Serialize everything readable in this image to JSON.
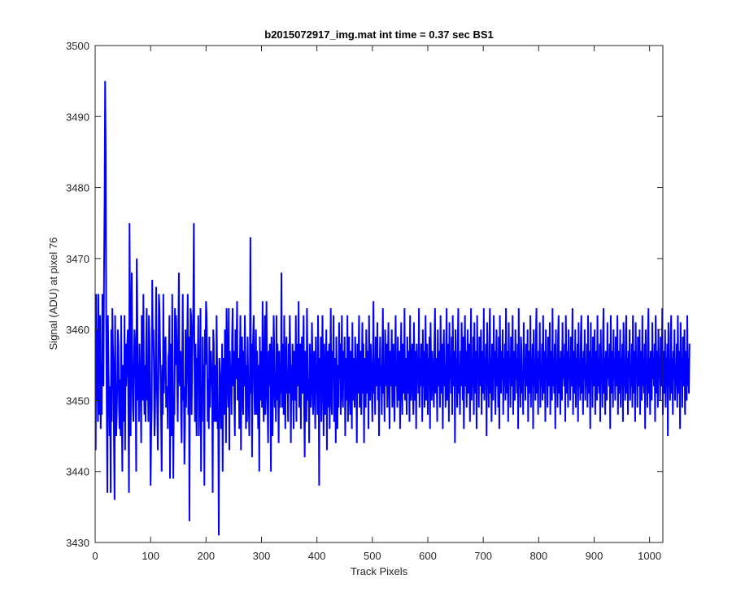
{
  "chart_data": {
    "type": "line",
    "title": "b2015072917_img.mat int time = 0.37 sec   BS1",
    "xlabel": "Track Pixels",
    "ylabel": "Signal (ADU) at pixel 76",
    "xlim": [
      0,
      1024
    ],
    "ylim": [
      3430,
      3500
    ],
    "xticks": [
      0,
      100,
      200,
      300,
      400,
      500,
      600,
      700,
      800,
      900,
      1000
    ],
    "yticks": [
      3430,
      3440,
      3450,
      3460,
      3470,
      3480,
      3490,
      3500
    ],
    "grid": false,
    "line_color": "#0000ff",
    "series": [
      {
        "x_start": 1,
        "x_step": 1,
        "values": [
          3443,
          3465,
          3450,
          3460,
          3447,
          3465,
          3448,
          3455,
          3462,
          3446,
          3455,
          3448,
          3465,
          3458,
          3452,
          3468,
          3478,
          3495,
          3485,
          3460,
          3448,
          3437,
          3462,
          3455,
          3450,
          3445,
          3452,
          3437,
          3460,
          3447,
          3463,
          3458,
          3455,
          3444,
          3436,
          3462,
          3450,
          3445,
          3448,
          3453,
          3460,
          3458,
          3449,
          3446,
          3453,
          3445,
          3462,
          3448,
          3440,
          3455,
          3452,
          3447,
          3462,
          3443,
          3458,
          3452,
          3455,
          3458,
          3460,
          3448,
          3437,
          3475,
          3462,
          3445,
          3458,
          3468,
          3455,
          3449,
          3447,
          3455,
          3460,
          3458,
          3452,
          3440,
          3470,
          3463,
          3450,
          3455,
          3447,
          3458,
          3454,
          3452,
          3444,
          3462,
          3458,
          3450,
          3465,
          3453,
          3448,
          3455,
          3447,
          3458,
          3463,
          3450,
          3455,
          3447,
          3462,
          3459,
          3452,
          3438,
          3445,
          3449,
          3467,
          3458,
          3460,
          3455,
          3445,
          3448,
          3455,
          3466,
          3454,
          3449,
          3443,
          3452,
          3465,
          3463,
          3458,
          3453,
          3447,
          3440,
          3455,
          3448,
          3465,
          3451,
          3455,
          3458,
          3459,
          3449,
          3450,
          3452,
          3446,
          3456,
          3457,
          3462,
          3439,
          3455,
          3458,
          3445,
          3465,
          3452,
          3439,
          3451,
          3448,
          3463,
          3455,
          3462,
          3458,
          3452,
          3447,
          3459,
          3468,
          3453,
          3452,
          3457,
          3448,
          3444,
          3455,
          3465,
          3450,
          3452,
          3441,
          3446,
          3460,
          3449,
          3455,
          3458,
          3465,
          3448,
          3459,
          3433,
          3452,
          3463,
          3462,
          3448,
          3456,
          3460,
          3463,
          3475,
          3456,
          3447,
          3458,
          3452,
          3445,
          3456,
          3455,
          3462,
          3445,
          3449,
          3453,
          3463,
          3440,
          3452,
          3447,
          3459,
          3450,
          3455,
          3438,
          3460,
          3455,
          3464,
          3462,
          3456,
          3447,
          3453,
          3446,
          3459,
          3449,
          3455,
          3457,
          3454,
          3451,
          3437,
          3460,
          3458,
          3447,
          3455,
          3453,
          3447,
          3462,
          3455,
          3446,
          3448,
          3431,
          3456,
          3454,
          3452,
          3446,
          3452,
          3458,
          3440,
          3456,
          3450,
          3448,
          3460,
          3455,
          3444,
          3463,
          3458,
          3452,
          3449,
          3463,
          3443,
          3457,
          3452,
          3455,
          3448,
          3459,
          3463,
          3452,
          3457,
          3450,
          3445,
          3460,
          3453,
          3458,
          3464,
          3450,
          3455,
          3456,
          3446,
          3455,
          3462,
          3443,
          3455,
          3459,
          3451,
          3448,
          3457,
          3452,
          3462,
          3456,
          3446,
          3455,
          3447,
          3459,
          3453,
          3450,
          3445,
          3454,
          3473,
          3451,
          3458,
          3442,
          3455,
          3459,
          3462,
          3452,
          3448,
          3455,
          3460,
          3448,
          3457,
          3453,
          3446,
          3455,
          3440,
          3459,
          3450,
          3457,
          3455,
          3449,
          3464,
          3451,
          3447,
          3455,
          3462,
          3448,
          3451,
          3464,
          3455,
          3449,
          3444,
          3457,
          3452,
          3458,
          3454,
          3440,
          3459,
          3455,
          3445,
          3452,
          3462,
          3457,
          3449,
          3454,
          3447,
          3462,
          3450,
          3458,
          3452,
          3444,
          3457,
          3449,
          3455,
          3451,
          3468,
          3449,
          3458,
          3455,
          3448,
          3462,
          3453,
          3446,
          3456,
          3459,
          3451,
          3454,
          3447,
          3458,
          3451,
          3462,
          3456,
          3444,
          3455,
          3450,
          3458,
          3453,
          3446,
          3457,
          3450,
          3452,
          3462,
          3447,
          3458,
          3452,
          3455,
          3464,
          3449,
          3452,
          3458,
          3446,
          3455,
          3459,
          3451,
          3456,
          3462,
          3449,
          3442,
          3457,
          3453,
          3447,
          3463,
          3456,
          3450,
          3453,
          3444,
          3458,
          3455,
          3449,
          3452,
          3461,
          3456,
          3448,
          3451,
          3457,
          3453,
          3446,
          3459,
          3451,
          3455,
          3448,
          3462,
          3454,
          3438,
          3456,
          3451,
          3459,
          3447,
          3453,
          3462,
          3455,
          3445,
          3458,
          3451,
          3448,
          3455,
          3460,
          3443,
          3457,
          3449,
          3452,
          3458,
          3446,
          3455,
          3463,
          3450,
          3448,
          3457,
          3453,
          3462,
          3447,
          3451,
          3456,
          3444,
          3459,
          3452,
          3446,
          3455,
          3449,
          3461,
          3453,
          3458,
          3448,
          3455,
          3462,
          3451,
          3449,
          3457,
          3453,
          3459,
          3445,
          3452,
          3456,
          3450,
          3462,
          3447,
          3455,
          3459,
          3451,
          3448,
          3457,
          3454,
          3446,
          3461,
          3450,
          3456,
          3452,
          3449,
          3459,
          3455,
          3453,
          3444,
          3458,
          3451,
          3456,
          3462,
          3449,
          3452,
          3457,
          3448,
          3455,
          3461,
          3451,
          3458,
          3444,
          3456,
          3452,
          3449,
          3460,
          3455,
          3451,
          3457,
          3446,
          3462,
          3453,
          3450,
          3458,
          3455,
          3452,
          3447,
          3456,
          3464,
          3451,
          3454,
          3448,
          3459,
          3455,
          3452,
          3461,
          3450,
          3456,
          3445,
          3453,
          3459,
          3452,
          3455,
          3448,
          3457,
          3463,
          3451,
          3454,
          3447,
          3460,
          3456,
          3452,
          3458,
          3449,
          3455,
          3461,
          3453,
          3446,
          3457,
          3452,
          3455,
          3460,
          3449,
          3453,
          3458,
          3451,
          3447,
          3456,
          3462,
          3452,
          3455,
          3449,
          3459,
          3453,
          3450,
          3457,
          3446,
          3455,
          3461,
          3452,
          3448,
          3458,
          3454,
          3451,
          3463,
          3450,
          3456,
          3453,
          3448,
          3459,
          3455,
          3451,
          3457,
          3447,
          3462,
          3453,
          3450,
          3456,
          3458,
          3452,
          3448,
          3461,
          3455,
          3450,
          3457,
          3446,
          3458,
          3453,
          3455,
          3451,
          3463,
          3449,
          3456,
          3452,
          3458,
          3455,
          3447,
          3460,
          3452,
          3457,
          3449,
          3454,
          3462,
          3450,
          3455,
          3458,
          3448,
          3456,
          3452,
          3459,
          3446,
          3461,
          3453,
          3450,
          3457,
          3455,
          3452,
          3449,
          3458,
          3463,
          3451,
          3456,
          3453,
          3447,
          3460,
          3452,
          3457,
          3455,
          3449,
          3462,
          3454,
          3451,
          3458,
          3446,
          3456,
          3460,
          3452,
          3455,
          3449,
          3457,
          3463,
          3450,
          3454,
          3458,
          3447,
          3461,
          3453,
          3456,
          3451,
          3459,
          3448,
          3462,
          3455,
          3452,
          3457,
          3444,
          3460,
          3453,
          3456,
          3449,
          3458,
          3463,
          3451,
          3455,
          3448,
          3457,
          3452,
          3461,
          3456,
          3450,
          3459,
          3446,
          3454,
          3462,
          3452,
          3457,
          3449,
          3455,
          3460,
          3451,
          3453,
          3458,
          3447,
          3456,
          3463,
          3450,
          3455,
          3452,
          3459,
          3448,
          3461,
          3454,
          3451,
          3457,
          3446,
          3462,
          3453,
          3456,
          3449,
          3459,
          3455,
          3452,
          3460,
          3448,
          3457,
          3454,
          3451,
          3463,
          3450,
          3456,
          3453,
          3458,
          3445,
          3461,
          3452,
          3455,
          3449,
          3459,
          3463,
          3451,
          3456,
          3447,
          3458,
          3454,
          3450,
          3462,
          3453,
          3457,
          3448,
          3455,
          3460,
          3452,
          3456,
          3449,
          3459,
          3446,
          3462,
          3454,
          3451,
          3457,
          3453,
          3460,
          3448,
          3456,
          3452,
          3458,
          3450,
          3463,
          3455,
          3451,
          3457,
          3447,
          3461,
          3453,
          3456,
          3449,
          3459,
          3452,
          3455,
          3462,
          3448,
          3457,
          3454,
          3450,
          3460,
          3453,
          3456,
          3451,
          3458,
          3446,
          3463,
          3452,
          3455,
          3449,
          3459,
          3457,
          3451,
          3454,
          3448,
          3461,
          3453,
          3456,
          3450,
          3458,
          3455,
          3452,
          3460,
          3447,
          3457,
          3453,
          3451,
          3462,
          3449,
          3456,
          3454,
          3458,
          3446,
          3460,
          3452,
          3455,
          3450,
          3459,
          3463,
          3451,
          3456,
          3448,
          3457,
          3453,
          3461,
          3449,
          3455,
          3452,
          3458,
          3450,
          3462,
          3454,
          3451,
          3457,
          3447,
          3460,
          3453,
          3456,
          3449,
          3459,
          3455,
          3452,
          3461,
          3448,
          3457,
          3454,
          3450,
          3463,
          3452,
          3456,
          3451,
          3458,
          3446,
          3460,
          3453,
          3455,
          3449,
          3459,
          3462,
          3451,
          3456,
          3448,
          3457,
          3454,
          3450,
          3461,
          3453,
          3456,
          3452,
          3458,
          3447,
          3462,
          3455,
          3451,
          3457,
          3449,
          3460,
          3453,
          3456,
          3450,
          3459,
          3452,
          3455,
          3463,
          3448,
          3457,
          3454,
          3451,
          3460,
          3449,
          3456,
          3453,
          3458,
          3447,
          3461,
          3452,
          3455,
          3450,
          3459,
          3462,
          3451,
          3456,
          3448,
          3457,
          3453,
          3460,
          3450,
          3455,
          3452,
          3458,
          3449,
          3462,
          3454,
          3451,
          3457,
          3446,
          3461,
          3453,
          3456,
          3449,
          3459,
          3455,
          3452,
          3460,
          3448,
          3457,
          3454,
          3450,
          3462,
          3452,
          3456,
          3451,
          3458,
          3447,
          3460,
          3453,
          3455,
          3449,
          3459,
          3463,
          3451,
          3456,
          3448,
          3457,
          3454,
          3450,
          3461,
          3453,
          3456,
          3452,
          3458,
          3446,
          3462,
          3455,
          3451,
          3457,
          3449,
          3460,
          3453,
          3456,
          3450,
          3459,
          3452,
          3455,
          3462,
          3448,
          3457,
          3454,
          3451,
          3460,
          3449,
          3456,
          3453,
          3458,
          3447,
          3461,
          3452,
          3455,
          3450,
          3459,
          3462,
          3451,
          3456,
          3448,
          3457,
          3453,
          3460,
          3450,
          3455,
          3452,
          3458,
          3449,
          3462,
          3454,
          3451,
          3457,
          3447,
          3461,
          3453,
          3456,
          3449,
          3459,
          3455,
          3452,
          3460,
          3448,
          3457,
          3454,
          3450,
          3462,
          3452,
          3456,
          3451,
          3458,
          3446,
          3460,
          3453,
          3455,
          3449,
          3459,
          3463,
          3451,
          3456,
          3448,
          3457,
          3454,
          3450,
          3461,
          3453,
          3456,
          3452,
          3458,
          3447,
          3462,
          3455,
          3451,
          3457,
          3449,
          3460,
          3453,
          3456,
          3450,
          3459,
          3452,
          3455,
          3463,
          3448,
          3457,
          3454,
          3451,
          3460,
          3449,
          3456,
          3453,
          3458,
          3445,
          3461,
          3452,
          3455,
          3450,
          3459,
          3462,
          3451,
          3456,
          3448,
          3457,
          3453,
          3460,
          3450,
          3455,
          3452,
          3458,
          3449,
          3462,
          3454,
          3451,
          3457,
          3446,
          3461,
          3453,
          3456,
          3449,
          3459,
          3455,
          3452,
          3460,
          3448,
          3457,
          3454,
          3450,
          3462,
          3452,
          3456,
          3451,
          3458
        ]
      }
    ]
  }
}
